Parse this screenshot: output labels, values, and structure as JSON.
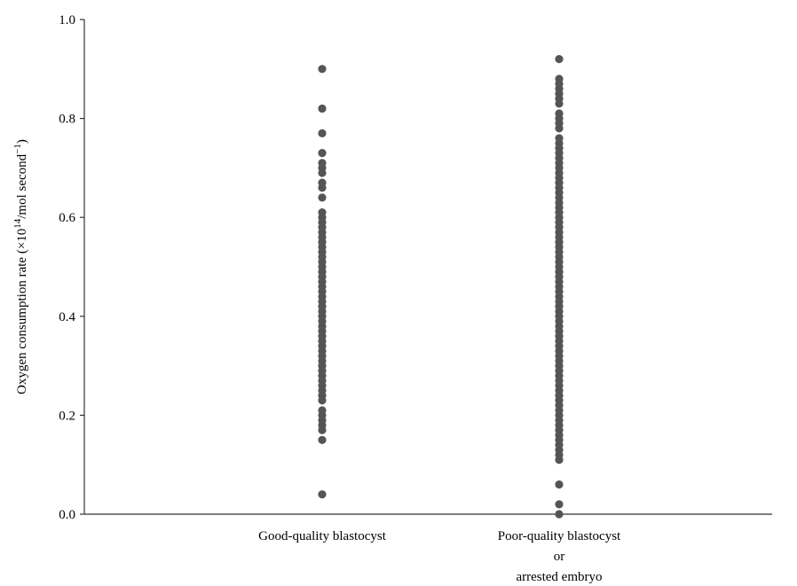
{
  "chart_data": {
    "type": "scatter",
    "ylabel": "Oxygen consumption rate (×10",
    "ylabel_sup1": "14",
    "ylabel_mid": "/mol second",
    "ylabel_sup2": "−1",
    "ylabel_end": ")",
    "ylim": [
      0.0,
      1.0
    ],
    "yticks": [
      "0.0",
      "0.2",
      "0.4",
      "0.6",
      "0.8",
      "1.0"
    ],
    "grid": false,
    "categories": [
      {
        "lines": [
          "Good-quality blastocyst"
        ]
      },
      {
        "lines": [
          "Poor-quality blastocyst",
          "or",
          "arrested embryo"
        ]
      }
    ],
    "marker_color": "#555555",
    "series": [
      {
        "category_index": 0,
        "values": [
          0.04,
          0.15,
          0.17,
          0.18,
          0.19,
          0.2,
          0.21,
          0.23,
          0.24,
          0.25,
          0.26,
          0.27,
          0.28,
          0.29,
          0.3,
          0.31,
          0.32,
          0.33,
          0.34,
          0.35,
          0.36,
          0.37,
          0.38,
          0.39,
          0.4,
          0.41,
          0.42,
          0.43,
          0.44,
          0.45,
          0.46,
          0.47,
          0.48,
          0.49,
          0.5,
          0.51,
          0.52,
          0.53,
          0.54,
          0.55,
          0.56,
          0.57,
          0.58,
          0.59,
          0.6,
          0.61,
          0.64,
          0.66,
          0.67,
          0.69,
          0.7,
          0.71,
          0.73,
          0.77,
          0.82,
          0.9
        ]
      },
      {
        "category_index": 1,
        "values": [
          0.0,
          0.02,
          0.06,
          0.11,
          0.12,
          0.13,
          0.14,
          0.15,
          0.16,
          0.17,
          0.18,
          0.19,
          0.2,
          0.21,
          0.22,
          0.23,
          0.24,
          0.25,
          0.26,
          0.27,
          0.28,
          0.29,
          0.3,
          0.31,
          0.32,
          0.33,
          0.34,
          0.35,
          0.36,
          0.37,
          0.38,
          0.39,
          0.4,
          0.41,
          0.42,
          0.43,
          0.44,
          0.45,
          0.46,
          0.47,
          0.48,
          0.49,
          0.5,
          0.51,
          0.52,
          0.53,
          0.54,
          0.55,
          0.56,
          0.57,
          0.58,
          0.59,
          0.6,
          0.61,
          0.62,
          0.63,
          0.64,
          0.65,
          0.66,
          0.67,
          0.68,
          0.69,
          0.7,
          0.71,
          0.72,
          0.73,
          0.74,
          0.75,
          0.76,
          0.78,
          0.79,
          0.8,
          0.81,
          0.83,
          0.84,
          0.85,
          0.86,
          0.87,
          0.88,
          0.92
        ]
      }
    ]
  }
}
